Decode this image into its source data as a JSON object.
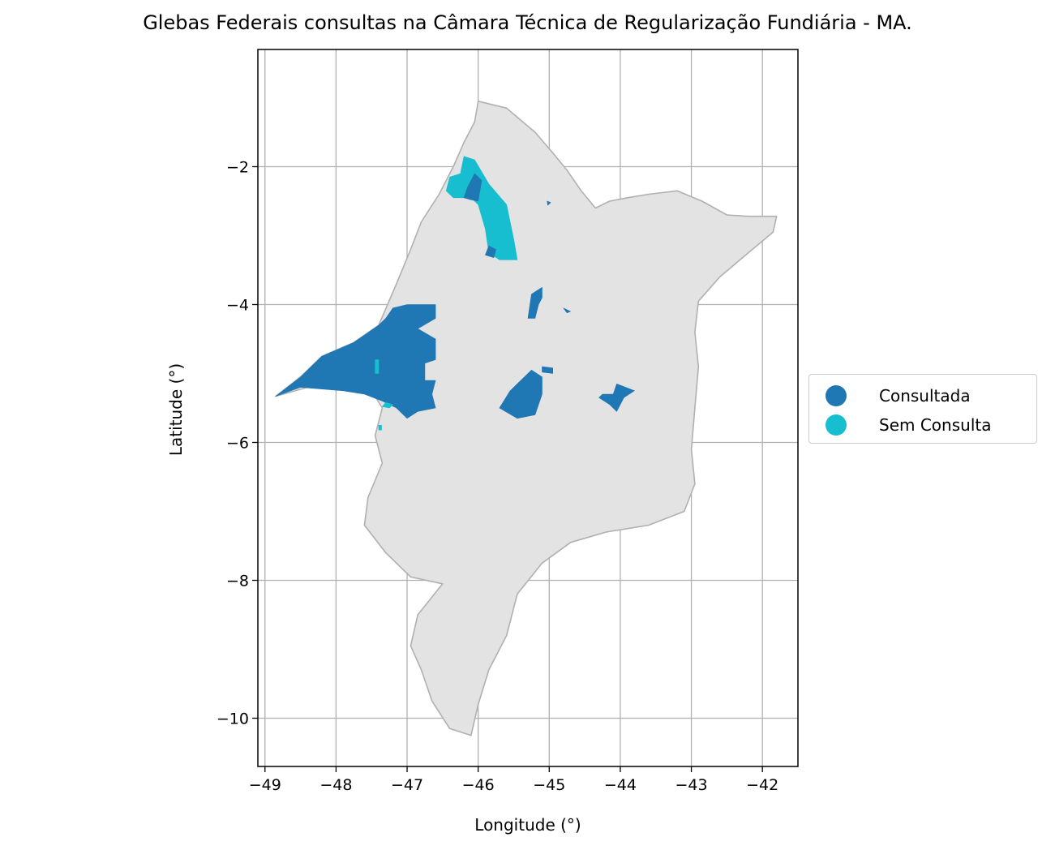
{
  "title": "Glebas Federais consultas na Câmara Técnica de Regularização Fundiária - MA.",
  "colors": {
    "consultada": "#1f77b4",
    "sem_consulta": "#17becf",
    "state_fill": "#e3e3e3",
    "state_edge": "#b0b0b0",
    "grid": "#b0b0b0"
  },
  "legend": {
    "items": [
      {
        "label": "Consultada",
        "color": "#1f77b4"
      },
      {
        "label": "Sem Consulta",
        "color": "#17becf"
      }
    ]
  },
  "chart_data": {
    "type": "map",
    "title": "Glebas Federais consultas na Câmara Técnica de Regularização Fundiária - MA.",
    "xlabel": "Longitude (°)",
    "ylabel": "Latitude (°)",
    "xlim": [
      -49.1,
      -41.5
    ],
    "ylim": [
      -10.7,
      -0.3
    ],
    "xticks": [
      -49,
      -48,
      -47,
      -46,
      -45,
      -44,
      -43,
      -42
    ],
    "xtick_labels": [
      "−49",
      "−48",
      "−47",
      "−46",
      "−45",
      "−44",
      "−43",
      "−42"
    ],
    "yticks": [
      -2,
      -4,
      -6,
      -8,
      -10
    ],
    "ytick_labels": [
      "−2",
      "−4",
      "−6",
      "−8",
      "−10"
    ],
    "grid": true,
    "legend_position": "outside-right",
    "state_outline": [
      [
        -46.0,
        -1.05
      ],
      [
        -45.6,
        -1.15
      ],
      [
        -45.2,
        -1.5
      ],
      [
        -44.95,
        -1.8
      ],
      [
        -44.75,
        -2.05
      ],
      [
        -44.55,
        -2.35
      ],
      [
        -44.35,
        -2.6
      ],
      [
        -44.15,
        -2.5
      ],
      [
        -43.9,
        -2.45
      ],
      [
        -43.6,
        -2.4
      ],
      [
        -43.2,
        -2.35
      ],
      [
        -42.85,
        -2.5
      ],
      [
        -42.5,
        -2.7
      ],
      [
        -42.2,
        -2.72
      ],
      [
        -41.8,
        -2.72
      ],
      [
        -41.85,
        -2.95
      ],
      [
        -42.2,
        -3.25
      ],
      [
        -42.6,
        -3.6
      ],
      [
        -42.9,
        -3.95
      ],
      [
        -42.95,
        -4.4
      ],
      [
        -42.9,
        -4.9
      ],
      [
        -42.95,
        -5.5
      ],
      [
        -43.0,
        -6.1
      ],
      [
        -42.95,
        -6.6
      ],
      [
        -43.1,
        -7.0
      ],
      [
        -43.6,
        -7.2
      ],
      [
        -44.2,
        -7.3
      ],
      [
        -44.7,
        -7.45
      ],
      [
        -45.1,
        -7.75
      ],
      [
        -45.45,
        -8.2
      ],
      [
        -45.6,
        -8.8
      ],
      [
        -45.85,
        -9.3
      ],
      [
        -46.0,
        -9.8
      ],
      [
        -46.1,
        -10.25
      ],
      [
        -46.4,
        -10.15
      ],
      [
        -46.65,
        -9.75
      ],
      [
        -46.8,
        -9.3
      ],
      [
        -46.95,
        -8.95
      ],
      [
        -46.85,
        -8.5
      ],
      [
        -46.5,
        -8.05
      ],
      [
        -46.95,
        -7.95
      ],
      [
        -47.3,
        -7.6
      ],
      [
        -47.6,
        -7.2
      ],
      [
        -47.55,
        -6.8
      ],
      [
        -47.35,
        -6.3
      ],
      [
        -47.45,
        -5.9
      ],
      [
        -47.35,
        -5.5
      ],
      [
        -47.5,
        -5.25
      ],
      [
        -48.0,
        -5.15
      ],
      [
        -48.4,
        -5.2
      ],
      [
        -48.85,
        -5.33
      ],
      [
        -48.5,
        -5.05
      ],
      [
        -48.2,
        -4.75
      ],
      [
        -47.75,
        -4.55
      ],
      [
        -47.4,
        -4.3
      ],
      [
        -47.15,
        -3.7
      ],
      [
        -46.95,
        -3.2
      ],
      [
        -46.8,
        -2.8
      ],
      [
        -46.55,
        -2.4
      ],
      [
        -46.35,
        -2.0
      ],
      [
        -46.2,
        -1.65
      ],
      [
        -46.05,
        -1.35
      ]
    ],
    "glebas": [
      {
        "status": "Sem Consulta",
        "polygon": [
          [
            -46.2,
            -1.85
          ],
          [
            -46.05,
            -1.9
          ],
          [
            -45.85,
            -2.25
          ],
          [
            -45.6,
            -2.55
          ],
          [
            -45.5,
            -3.05
          ],
          [
            -45.45,
            -3.35
          ],
          [
            -45.7,
            -3.35
          ],
          [
            -45.85,
            -3.25
          ],
          [
            -45.9,
            -2.9
          ],
          [
            -46.0,
            -2.55
          ],
          [
            -46.1,
            -2.45
          ],
          [
            -46.35,
            -2.45
          ],
          [
            -46.45,
            -2.35
          ],
          [
            -46.4,
            -2.15
          ],
          [
            -46.25,
            -2.1
          ]
        ]
      },
      {
        "status": "Consultada",
        "polygon": [
          [
            -46.05,
            -2.1
          ],
          [
            -45.95,
            -2.2
          ],
          [
            -46.0,
            -2.5
          ],
          [
            -46.1,
            -2.48
          ],
          [
            -46.2,
            -2.45
          ],
          [
            -46.15,
            -2.3
          ]
        ]
      },
      {
        "status": "Consultada",
        "polygon": [
          [
            -45.85,
            -3.15
          ],
          [
            -45.75,
            -3.2
          ],
          [
            -45.78,
            -3.32
          ],
          [
            -45.9,
            -3.28
          ]
        ]
      },
      {
        "status": "Consultada",
        "polygon": [
          [
            -47.0,
            -4.0
          ],
          [
            -46.6,
            -4.0
          ],
          [
            -46.6,
            -4.2
          ],
          [
            -46.85,
            -4.35
          ],
          [
            -46.6,
            -4.5
          ],
          [
            -46.6,
            -4.8
          ],
          [
            -46.75,
            -4.85
          ],
          [
            -46.75,
            -5.1
          ],
          [
            -46.6,
            -5.1
          ],
          [
            -46.65,
            -5.3
          ],
          [
            -46.6,
            -5.5
          ],
          [
            -46.85,
            -5.55
          ],
          [
            -47.0,
            -5.65
          ],
          [
            -47.15,
            -5.5
          ],
          [
            -47.35,
            -5.4
          ],
          [
            -47.6,
            -5.3
          ],
          [
            -47.9,
            -5.25
          ],
          [
            -48.5,
            -5.2
          ],
          [
            -48.85,
            -5.33
          ],
          [
            -48.5,
            -5.05
          ],
          [
            -48.2,
            -4.75
          ],
          [
            -47.75,
            -4.55
          ],
          [
            -47.4,
            -4.3
          ],
          [
            -47.3,
            -4.2
          ],
          [
            -47.2,
            -4.05
          ]
        ]
      },
      {
        "status": "Sem Consulta",
        "polygon": [
          [
            -47.45,
            -4.8
          ],
          [
            -47.4,
            -4.8
          ],
          [
            -47.4,
            -5.0
          ],
          [
            -47.45,
            -5.0
          ]
        ]
      },
      {
        "status": "Sem Consulta",
        "polygon": [
          [
            -47.3,
            -5.42
          ],
          [
            -47.2,
            -5.45
          ],
          [
            -47.25,
            -5.5
          ],
          [
            -47.35,
            -5.48
          ]
        ]
      },
      {
        "status": "Sem Consulta",
        "polygon": [
          [
            -47.4,
            -5.75
          ],
          [
            -47.36,
            -5.75
          ],
          [
            -47.36,
            -5.82
          ],
          [
            -47.4,
            -5.82
          ]
        ]
      },
      {
        "status": "Consultada",
        "polygon": [
          [
            -45.25,
            -4.95
          ],
          [
            -45.55,
            -5.25
          ],
          [
            -45.7,
            -5.5
          ],
          [
            -45.45,
            -5.65
          ],
          [
            -45.2,
            -5.6
          ],
          [
            -45.1,
            -5.3
          ],
          [
            -45.1,
            -5.05
          ]
        ]
      },
      {
        "status": "Consultada",
        "polygon": [
          [
            -45.1,
            -4.9
          ],
          [
            -44.95,
            -4.92
          ],
          [
            -44.95,
            -5.0
          ],
          [
            -45.1,
            -4.98
          ]
        ]
      },
      {
        "status": "Consultada",
        "polygon": [
          [
            -45.1,
            -3.75
          ],
          [
            -45.25,
            -3.85
          ],
          [
            -45.3,
            -4.2
          ],
          [
            -45.2,
            -4.2
          ],
          [
            -45.15,
            -4.0
          ],
          [
            -45.1,
            -3.9
          ]
        ]
      },
      {
        "status": "Consultada",
        "polygon": [
          [
            -44.05,
            -5.15
          ],
          [
            -43.8,
            -5.25
          ],
          [
            -43.95,
            -5.35
          ],
          [
            -44.05,
            -5.55
          ],
          [
            -44.15,
            -5.45
          ],
          [
            -44.3,
            -5.35
          ],
          [
            -44.25,
            -5.3
          ],
          [
            -44.1,
            -5.3
          ]
        ]
      },
      {
        "status": "Consultada",
        "polygon": [
          [
            -44.8,
            -4.05
          ],
          [
            -44.7,
            -4.1
          ],
          [
            -44.75,
            -4.12
          ]
        ]
      },
      {
        "status": "Consultada",
        "polygon": [
          [
            -45.03,
            -2.5
          ],
          [
            -44.98,
            -2.52
          ],
          [
            -45.02,
            -2.56
          ]
        ]
      }
    ]
  }
}
